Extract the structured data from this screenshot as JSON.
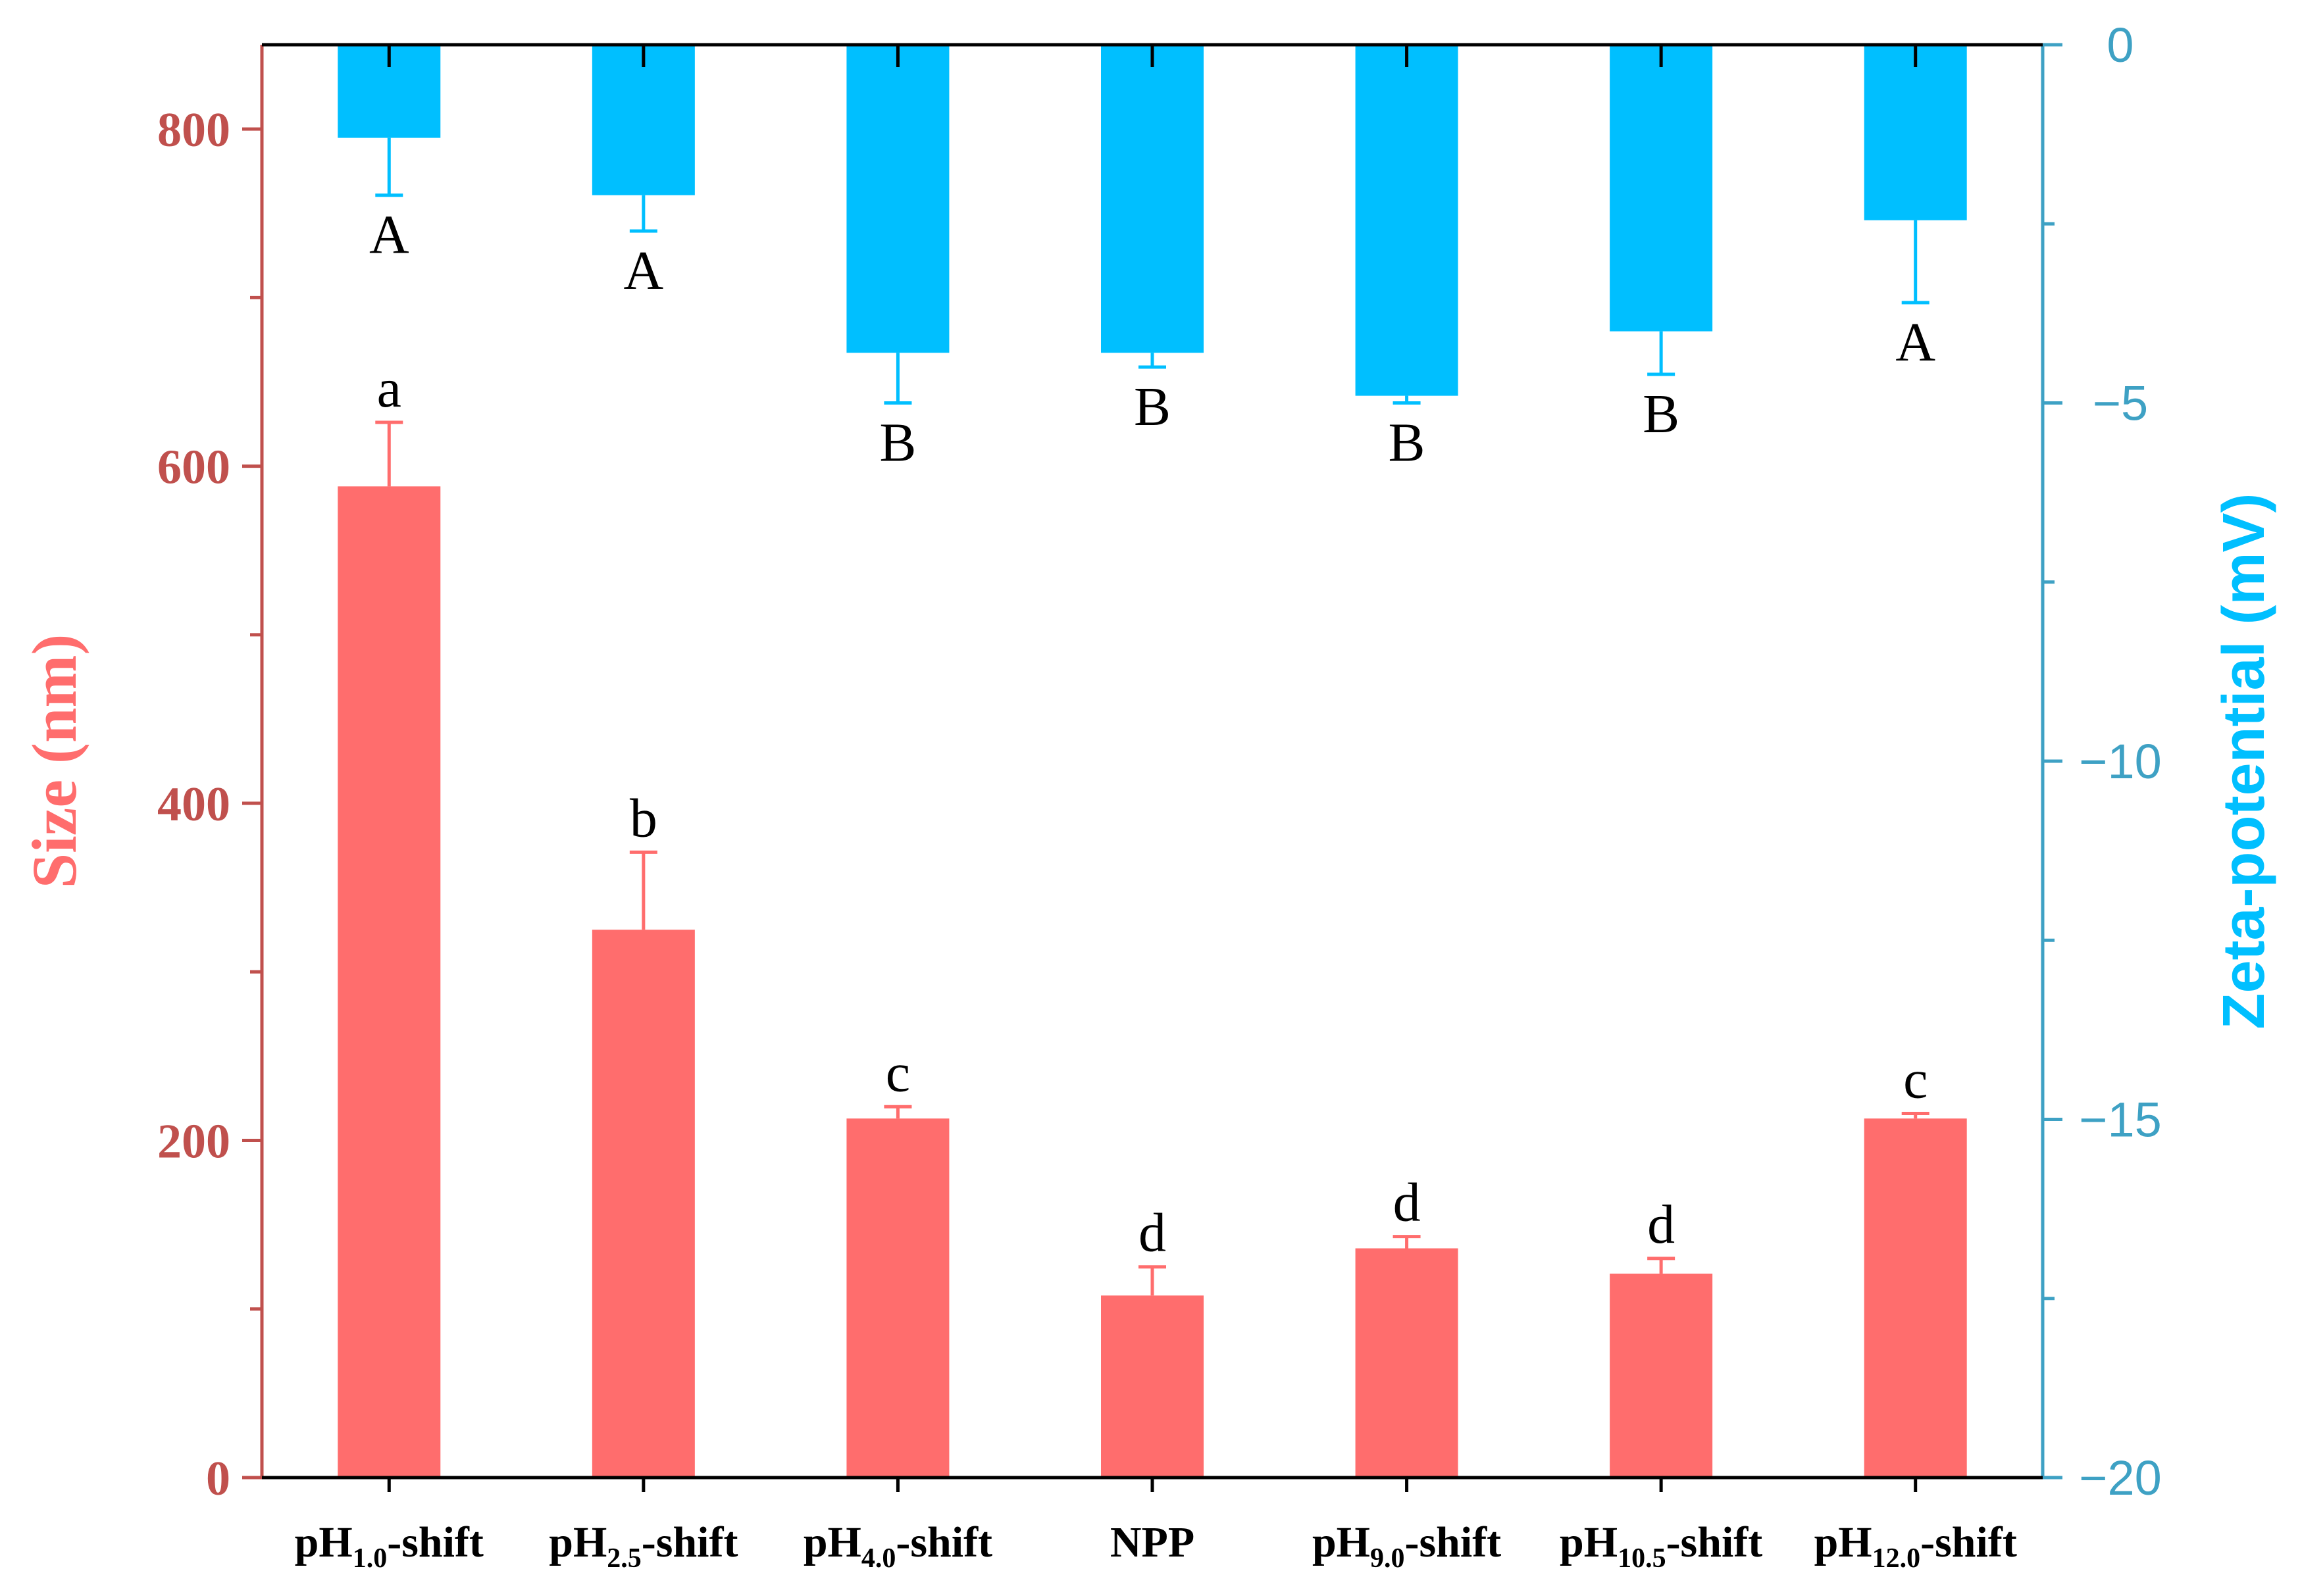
{
  "chart_data": {
    "type": "bar",
    "categories": [
      {
        "base": "pH",
        "sub": "1.0",
        "suffix": "-shift"
      },
      {
        "base": "pH",
        "sub": "2.5",
        "suffix": "-shift"
      },
      {
        "base": "pH",
        "sub": "4.0",
        "suffix": "-shift"
      },
      {
        "base": "NPP",
        "sub": "",
        "suffix": ""
      },
      {
        "base": "pH",
        "sub": "9.0",
        "suffix": "-shift"
      },
      {
        "base": "pH",
        "sub": "10.5",
        "suffix": "-shift"
      },
      {
        "base": "pH",
        "sub": "12.0",
        "suffix": "-shift"
      }
    ],
    "series": [
      {
        "name": "Size",
        "axis": "left",
        "color": "#ff6d6d",
        "values": [
          588,
          325,
          213,
          108,
          136,
          121,
          213
        ],
        "errors": [
          38,
          46,
          7,
          17,
          7,
          9,
          3
        ],
        "letters": [
          "a",
          "b",
          "c",
          "d",
          "d",
          "d",
          "c"
        ]
      },
      {
        "name": "Zeta-potential",
        "axis": "right",
        "color": "#00bfff",
        "values": [
          -1.3,
          -2.1,
          -4.3,
          -4.3,
          -4.9,
          -4.0,
          -2.45
        ],
        "errors": [
          0.8,
          0.5,
          0.7,
          0.2,
          0.1,
          0.6,
          1.15
        ],
        "letters": [
          "A",
          "A",
          "B",
          "B",
          "B",
          "B",
          "A"
        ]
      }
    ],
    "left_axis": {
      "label": "Size (nm)",
      "ylim": [
        0,
        850
      ],
      "ticks": [
        0,
        200,
        400,
        600,
        800
      ],
      "minor_step": 100,
      "color": "#c0504d",
      "label_color": "#ff6d6d"
    },
    "right_axis": {
      "label": "Zeta-potential (mV)",
      "ylim": [
        -20,
        0
      ],
      "ticks": [
        0,
        -5,
        -10,
        -15,
        -20
      ],
      "tick_labels": [
        "0",
        "−5",
        "−10",
        "−15",
        "−20"
      ],
      "minor_step": 2.5,
      "color": "#3ea1c4",
      "label_color": "#00bfff"
    },
    "title": "",
    "xlabel": ""
  }
}
